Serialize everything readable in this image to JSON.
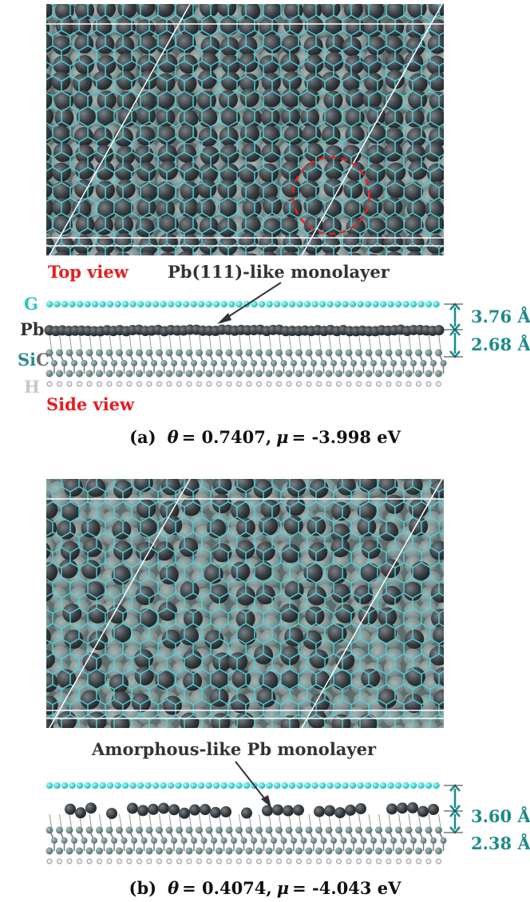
{
  "species_labels": {
    "g": "G",
    "pb": "Pb",
    "si": "Si",
    "c": "C",
    "h": "H"
  },
  "panels": [
    {
      "top_view_label": "Top view",
      "side_view_label": "Side view",
      "annotation": "Pb(111)-like monolayer",
      "spacings": [
        "3.76 Å",
        "2.68 Å"
      ],
      "caption": {
        "label": "(a)",
        "theta_symbol": "θ",
        "theta_text": "= 0.7407,",
        "mu_symbol": "μ",
        "mu_text": "= -3.998 eV"
      }
    },
    {
      "annotation": "Amorphous-like Pb monolayer",
      "spacings": [
        "3.60 Å",
        "2.38 Å"
      ],
      "caption": {
        "label": "(b)",
        "theta_symbol": "θ",
        "theta_text": "= 0.4074,",
        "mu_symbol": "μ",
        "mu_text": "= -4.043 eV"
      }
    }
  ]
}
